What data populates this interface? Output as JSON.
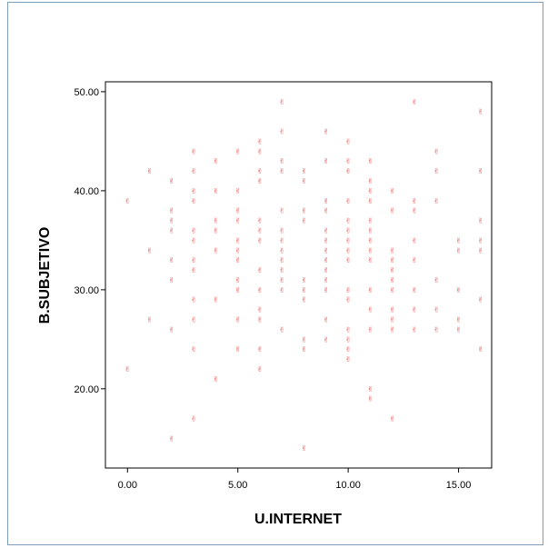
{
  "chart_data": {
    "type": "scatter",
    "xlabel": "U.INTERNET",
    "ylabel": "B.SUBJETIVO",
    "xlim": [
      -1,
      16.5
    ],
    "ylim": [
      12,
      51
    ],
    "x_ticks": [
      "0.00",
      "5.00",
      "10.00",
      "15.00"
    ],
    "x_tick_values": [
      0,
      5,
      10,
      15
    ],
    "y_ticks": [
      "20.00",
      "30.00",
      "40.00",
      "50.00"
    ],
    "y_tick_values": [
      20,
      30,
      40,
      50
    ],
    "marker_color": "#e74c4c",
    "marker_glyph": "✌",
    "points": [
      [
        0,
        39
      ],
      [
        0,
        22
      ],
      [
        1,
        42
      ],
      [
        1,
        34
      ],
      [
        1,
        27
      ],
      [
        2,
        41
      ],
      [
        2,
        38
      ],
      [
        2,
        37
      ],
      [
        2,
        36
      ],
      [
        2,
        33
      ],
      [
        2,
        31
      ],
      [
        2,
        26
      ],
      [
        2,
        15
      ],
      [
        3,
        44
      ],
      [
        3,
        42
      ],
      [
        3,
        40
      ],
      [
        3,
        39
      ],
      [
        3,
        36
      ],
      [
        3,
        35
      ],
      [
        3,
        33
      ],
      [
        3,
        32
      ],
      [
        3,
        29
      ],
      [
        3,
        27
      ],
      [
        3,
        24
      ],
      [
        3,
        17
      ],
      [
        4,
        43
      ],
      [
        4,
        40
      ],
      [
        4,
        37
      ],
      [
        4,
        36
      ],
      [
        4,
        34
      ],
      [
        4,
        29
      ],
      [
        4,
        21
      ],
      [
        5,
        44
      ],
      [
        5,
        40
      ],
      [
        5,
        38
      ],
      [
        5,
        37
      ],
      [
        5,
        35
      ],
      [
        5,
        34
      ],
      [
        5,
        33
      ],
      [
        5,
        31
      ],
      [
        5,
        30
      ],
      [
        5,
        27
      ],
      [
        5,
        24
      ],
      [
        6,
        45
      ],
      [
        6,
        44
      ],
      [
        6,
        42
      ],
      [
        6,
        41
      ],
      [
        6,
        37
      ],
      [
        6,
        36
      ],
      [
        6,
        35
      ],
      [
        6,
        32
      ],
      [
        6,
        30
      ],
      [
        6,
        28
      ],
      [
        6,
        27
      ],
      [
        6,
        24
      ],
      [
        6,
        22
      ],
      [
        7,
        49
      ],
      [
        7,
        46
      ],
      [
        7,
        43
      ],
      [
        7,
        42
      ],
      [
        7,
        38
      ],
      [
        7,
        36
      ],
      [
        7,
        35
      ],
      [
        7,
        34
      ],
      [
        7,
        33
      ],
      [
        7,
        32
      ],
      [
        7,
        31
      ],
      [
        7,
        30
      ],
      [
        7,
        26
      ],
      [
        8,
        42
      ],
      [
        8,
        41
      ],
      [
        8,
        38
      ],
      [
        8,
        37
      ],
      [
        8,
        31
      ],
      [
        8,
        30
      ],
      [
        8,
        29
      ],
      [
        8,
        25
      ],
      [
        8,
        24
      ],
      [
        8,
        14
      ],
      [
        9,
        46
      ],
      [
        9,
        43
      ],
      [
        9,
        39
      ],
      [
        9,
        38
      ],
      [
        9,
        36
      ],
      [
        9,
        35
      ],
      [
        9,
        34
      ],
      [
        9,
        33
      ],
      [
        9,
        32
      ],
      [
        9,
        31
      ],
      [
        9,
        30
      ],
      [
        9,
        27
      ],
      [
        9,
        25
      ],
      [
        10,
        45
      ],
      [
        10,
        43
      ],
      [
        10,
        42
      ],
      [
        10,
        39
      ],
      [
        10,
        37
      ],
      [
        10,
        36
      ],
      [
        10,
        35
      ],
      [
        10,
        34
      ],
      [
        10,
        33
      ],
      [
        10,
        30
      ],
      [
        10,
        29
      ],
      [
        10,
        26
      ],
      [
        10,
        25
      ],
      [
        10,
        24
      ],
      [
        10,
        23
      ],
      [
        11,
        43
      ],
      [
        11,
        41
      ],
      [
        11,
        40
      ],
      [
        11,
        39
      ],
      [
        11,
        37
      ],
      [
        11,
        36
      ],
      [
        11,
        35
      ],
      [
        11,
        34
      ],
      [
        11,
        33
      ],
      [
        11,
        30
      ],
      [
        11,
        28
      ],
      [
        11,
        26
      ],
      [
        11,
        20
      ],
      [
        11,
        19
      ],
      [
        12,
        40
      ],
      [
        12,
        38
      ],
      [
        12,
        34
      ],
      [
        12,
        33
      ],
      [
        12,
        32
      ],
      [
        12,
        31
      ],
      [
        12,
        30
      ],
      [
        12,
        28
      ],
      [
        12,
        27
      ],
      [
        12,
        26
      ],
      [
        12,
        17
      ],
      [
        13,
        49
      ],
      [
        13,
        39
      ],
      [
        13,
        38
      ],
      [
        13,
        35
      ],
      [
        13,
        33
      ],
      [
        13,
        30
      ],
      [
        13,
        28
      ],
      [
        13,
        26
      ],
      [
        14,
        44
      ],
      [
        14,
        42
      ],
      [
        14,
        39
      ],
      [
        14,
        31
      ],
      [
        14,
        28
      ],
      [
        14,
        26
      ],
      [
        15,
        35
      ],
      [
        15,
        34
      ],
      [
        15,
        30
      ],
      [
        15,
        27
      ],
      [
        15,
        26
      ],
      [
        16,
        48
      ],
      [
        16,
        42
      ],
      [
        16,
        37
      ],
      [
        16,
        35
      ],
      [
        16,
        34
      ],
      [
        16,
        29
      ],
      [
        16,
        24
      ]
    ]
  }
}
